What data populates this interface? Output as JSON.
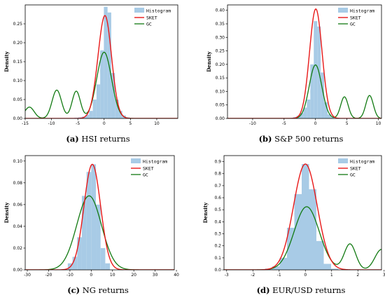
{
  "chart_data": [
    {
      "type": "bar",
      "caption_label": "(a)",
      "caption_text": "HSI returns",
      "ylabel": "Density",
      "xlim": [
        -15,
        14
      ],
      "ylim": [
        0,
        0.3
      ],
      "xticks": [
        "-15",
        "-10",
        "-5",
        "0",
        "5",
        "10"
      ],
      "xtick_values": [
        -15,
        -10,
        -5,
        0,
        5,
        10
      ],
      "yticks": [
        "0.00",
        "0.05",
        "0.10",
        "0.15",
        "0.20",
        "0.25"
      ],
      "ytick_values": [
        0,
        0.05,
        0.1,
        0.15,
        0.2,
        0.25
      ],
      "bin_width": 0.7,
      "histogram": {
        "x": [
          -5.3,
          -4.6,
          -3.9,
          -3.2,
          -2.5,
          -1.8,
          -1.1,
          -0.4,
          0.3,
          1.0,
          1.7,
          2.4,
          3.1,
          3.8,
          4.5
        ],
        "values": [
          0.002,
          0.003,
          0.005,
          0.01,
          0.02,
          0.05,
          0.09,
          0.18,
          0.295,
          0.28,
          0.12,
          0.05,
          0.02,
          0.008,
          0.003
        ]
      },
      "sket": {
        "name": "SKET",
        "mu": 0.0,
        "sigma": 1.3,
        "peak": 0.27,
        "skew": 0.12
      },
      "gc": {
        "name": "GC",
        "components": [
          {
            "mu": -14.2,
            "sigma": 0.9,
            "amp": 0.03
          },
          {
            "mu": -9.0,
            "sigma": 0.9,
            "amp": 0.075
          },
          {
            "mu": -5.3,
            "sigma": 0.8,
            "amp": 0.072
          },
          {
            "mu": 0.0,
            "sigma": 1.4,
            "amp": 0.175
          }
        ]
      },
      "legend": [
        "Histogram",
        "SKET",
        "GC"
      ]
    },
    {
      "type": "bar",
      "caption_label": "(b)",
      "caption_text": "S&P 500 returns",
      "ylabel": "Density",
      "xlim": [
        -14,
        10.5
      ],
      "ylim": [
        0,
        0.42
      ],
      "xticks": [
        "-10",
        "-5",
        "0",
        "5",
        "10"
      ],
      "xtick_values": [
        -10,
        -5,
        0,
        5,
        10
      ],
      "yticks": [
        "0.00",
        "0.05",
        "0.10",
        "0.15",
        "0.20",
        "0.25",
        "0.30",
        "0.35",
        "0.40"
      ],
      "ytick_values": [
        0,
        0.05,
        0.1,
        0.15,
        0.2,
        0.25,
        0.3,
        0.35,
        0.4
      ],
      "bin_width": 0.55,
      "histogram": {
        "x": [
          -3.3,
          -2.75,
          -2.2,
          -1.65,
          -1.1,
          -0.55,
          0.0,
          0.55,
          1.1,
          1.65,
          2.2,
          2.75
        ],
        "values": [
          0.005,
          0.01,
          0.02,
          0.04,
          0.07,
          0.2,
          0.36,
          0.34,
          0.17,
          0.06,
          0.015,
          0.005
        ]
      },
      "sket": {
        "name": "SKET",
        "mu": 0.05,
        "sigma": 1.0,
        "peak": 0.405,
        "skew": 0.0
      },
      "gc": {
        "name": "GC",
        "components": [
          {
            "mu": 0.0,
            "sigma": 1.0,
            "amp": 0.198
          },
          {
            "mu": 4.6,
            "sigma": 0.6,
            "amp": 0.08
          },
          {
            "mu": 8.6,
            "sigma": 0.6,
            "amp": 0.085
          }
        ]
      },
      "legend": [
        "Histogram",
        "SKET",
        "GC"
      ]
    },
    {
      "type": "bar",
      "caption_label": "(c)",
      "caption_text": "NG returns",
      "ylabel": "Density",
      "xlim": [
        -31,
        39
      ],
      "ylim": [
        0,
        0.105
      ],
      "xticks": [
        "-30",
        "-20",
        "-10",
        "0",
        "10",
        "20",
        "30",
        "40"
      ],
      "xtick_values": [
        -30,
        -20,
        -10,
        0,
        10,
        20,
        30,
        40
      ],
      "yticks": [
        "0.00",
        "0.02",
        "0.04",
        "0.06",
        "0.08",
        "0.10"
      ],
      "ytick_values": [
        0,
        0.02,
        0.04,
        0.06,
        0.08,
        0.1
      ],
      "bin_width": 2.2,
      "histogram": {
        "x": [
          -9.9,
          -7.7,
          -5.5,
          -3.3,
          -1.1,
          1.1,
          3.3,
          5.5,
          7.7
        ],
        "values": [
          0.006,
          0.012,
          0.03,
          0.068,
          0.09,
          0.097,
          0.06,
          0.02,
          0.006
        ]
      },
      "sket": {
        "name": "SKET",
        "mu": 0.5,
        "sigma": 3.9,
        "peak": 0.097,
        "skew": 0.0
      },
      "gc": {
        "name": "GC",
        "components": [
          {
            "mu": -1.0,
            "sigma": 5.8,
            "amp": 0.068
          }
        ]
      },
      "legend": [
        "Histogram",
        "SKET",
        "GC"
      ]
    },
    {
      "type": "bar",
      "caption_label": "(d)",
      "caption_text": "EUR/USD returns",
      "ylabel": "Density",
      "xlim": [
        -3.1,
        2.9
      ],
      "ylim": [
        0,
        0.95
      ],
      "xticks": [
        "-3",
        "-2",
        "-1",
        "0",
        "1",
        "2",
        "3"
      ],
      "xtick_values": [
        -3,
        -2,
        -1,
        0,
        1,
        2,
        3
      ],
      "yticks": [
        "0.0",
        "0.1",
        "0.2",
        "0.3",
        "0.4",
        "0.5",
        "0.6",
        "0.7",
        "0.8",
        "0.9"
      ],
      "ytick_values": [
        0,
        0.1,
        0.2,
        0.3,
        0.4,
        0.5,
        0.6,
        0.7,
        0.8,
        0.9
      ],
      "bin_width": 0.28,
      "histogram": {
        "x": [
          -1.4,
          -1.12,
          -0.84,
          -0.56,
          -0.28,
          0.0,
          0.28,
          0.56,
          0.84,
          1.12
        ],
        "values": [
          0.01,
          0.03,
          0.1,
          0.35,
          0.63,
          0.88,
          0.67,
          0.24,
          0.05,
          0.01
        ]
      },
      "sket": {
        "name": "SKET",
        "mu": 0.0,
        "sigma": 0.45,
        "peak": 0.88,
        "skew": 0.0
      },
      "gc": {
        "name": "GC",
        "components": [
          {
            "mu": 0.05,
            "sigma": 0.48,
            "amp": 0.525
          },
          {
            "mu": 1.7,
            "sigma": 0.22,
            "amp": 0.215
          },
          {
            "mu": 2.9,
            "sigma": 0.25,
            "amp": 0.17
          }
        ]
      },
      "legend": [
        "Histogram",
        "SKET",
        "GC"
      ]
    }
  ],
  "colors": {
    "histogram": "#a8cbe6",
    "sket": "#e81818",
    "gc": "#127a12",
    "legend_hist_patch": "#a8cbe6"
  }
}
